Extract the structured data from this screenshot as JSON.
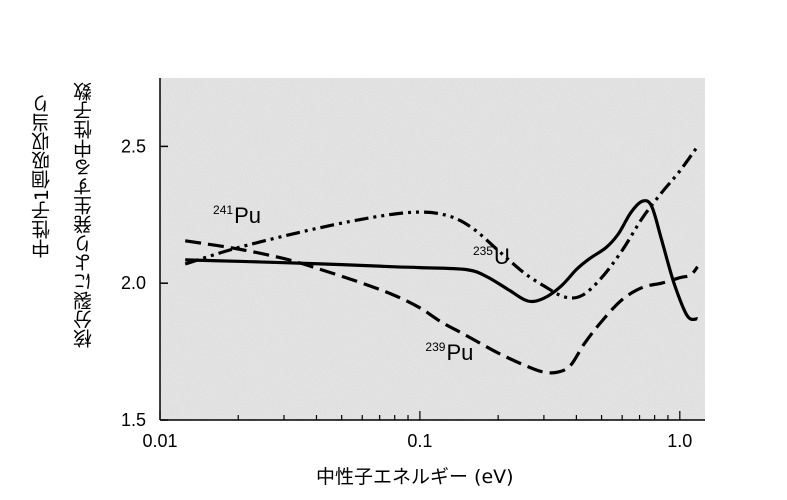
{
  "chart_data": {
    "type": "line",
    "x_scale": "log",
    "xlim": [
      0.01,
      1.25
    ],
    "ylim": [
      1.5,
      2.75
    ],
    "x_ticks": [
      {
        "value": 0.01,
        "label": "0.01"
      },
      {
        "value": 0.1,
        "label": "0.1"
      },
      {
        "value": 1.0,
        "label": "1.0"
      }
    ],
    "y_ticks": [
      {
        "value": 1.5,
        "label": "1.5"
      },
      {
        "value": 2.0,
        "label": "2.0"
      },
      {
        "value": 2.5,
        "label": "2.5"
      }
    ],
    "xlabel": "中性子エネルギー (eV)",
    "ylabel_lines": [
      "中性子1個吸収当り",
      "核分裂により発生する中性子数"
    ],
    "grid": false,
    "background": "#e6e6e6",
    "series": [
      {
        "name": "235U",
        "label": {
          "mass": "235",
          "element": "U",
          "at": [
            0.16,
            2.07
          ]
        },
        "dash": "solid",
        "color": "#000000",
        "points": [
          [
            0.0125,
            2.085
          ],
          [
            0.02,
            2.08
          ],
          [
            0.03,
            2.075
          ],
          [
            0.05,
            2.068
          ],
          [
            0.08,
            2.06
          ],
          [
            0.1,
            2.057
          ],
          [
            0.15,
            2.05
          ],
          [
            0.18,
            2.025
          ],
          [
            0.22,
            1.975
          ],
          [
            0.26,
            1.935
          ],
          [
            0.3,
            1.945
          ],
          [
            0.35,
            1.99
          ],
          [
            0.4,
            2.05
          ],
          [
            0.45,
            2.09
          ],
          [
            0.52,
            2.13
          ],
          [
            0.58,
            2.18
          ],
          [
            0.65,
            2.26
          ],
          [
            0.72,
            2.3
          ],
          [
            0.78,
            2.28
          ],
          [
            0.85,
            2.16
          ],
          [
            0.95,
            2.0
          ],
          [
            1.07,
            1.88
          ],
          [
            1.17,
            1.87
          ]
        ]
      },
      {
        "name": "239Pu",
        "label": {
          "mass": "239",
          "element": "Pu",
          "at": [
            0.105,
            1.72
          ]
        },
        "dash": "dash",
        "color": "#000000",
        "points": [
          [
            0.0125,
            2.155
          ],
          [
            0.02,
            2.125
          ],
          [
            0.03,
            2.09
          ],
          [
            0.04,
            2.055
          ],
          [
            0.06,
            2.0
          ],
          [
            0.08,
            1.955
          ],
          [
            0.1,
            1.91
          ],
          [
            0.12,
            1.86
          ],
          [
            0.15,
            1.81
          ],
          [
            0.2,
            1.745
          ],
          [
            0.26,
            1.695
          ],
          [
            0.3,
            1.675
          ],
          [
            0.34,
            1.675
          ],
          [
            0.38,
            1.7
          ],
          [
            0.43,
            1.78
          ],
          [
            0.5,
            1.86
          ],
          [
            0.6,
            1.94
          ],
          [
            0.72,
            1.985
          ],
          [
            0.85,
            2.0
          ],
          [
            1.0,
            2.02
          ],
          [
            1.1,
            2.03
          ],
          [
            1.17,
            2.06
          ]
        ]
      },
      {
        "name": "241Pu",
        "label": {
          "mass": "241",
          "element": "Pu",
          "at": [
            0.016,
            2.22
          ]
        },
        "dash": "dashdotdot",
        "color": "#000000",
        "points": [
          [
            0.0125,
            2.07
          ],
          [
            0.02,
            2.13
          ],
          [
            0.04,
            2.2
          ],
          [
            0.07,
            2.245
          ],
          [
            0.1,
            2.26
          ],
          [
            0.13,
            2.245
          ],
          [
            0.16,
            2.2
          ],
          [
            0.2,
            2.12
          ],
          [
            0.25,
            2.04
          ],
          [
            0.3,
            1.99
          ],
          [
            0.36,
            1.95
          ],
          [
            0.42,
            1.955
          ],
          [
            0.5,
            2.02
          ],
          [
            0.6,
            2.12
          ],
          [
            0.72,
            2.24
          ],
          [
            0.85,
            2.33
          ],
          [
            1.0,
            2.41
          ],
          [
            1.17,
            2.5
          ]
        ]
      }
    ]
  }
}
